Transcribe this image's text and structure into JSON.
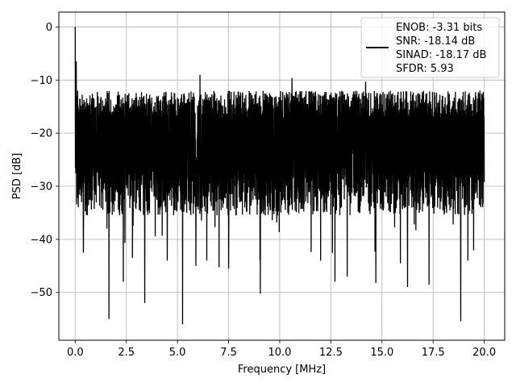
{
  "chart_data": {
    "type": "line",
    "title": "",
    "xlabel": "Frequency [MHz]",
    "ylabel": "PSD [dB]",
    "xlim": [
      -0.8,
      21.0
    ],
    "ylim": [
      -59,
      2.8
    ],
    "x_ticks": [
      0.0,
      2.5,
      5.0,
      7.5,
      10.0,
      12.5,
      15.0,
      17.5,
      20.0
    ],
    "x_tick_labels": [
      "0.0",
      "2.5",
      "5.0",
      "7.5",
      "10.0",
      "12.5",
      "15.0",
      "17.5",
      "20.0"
    ],
    "y_ticks": [
      0,
      -10,
      -20,
      -30,
      -40,
      -50
    ],
    "y_tick_labels": [
      "0",
      "−10",
      "−20",
      "−30",
      "−40",
      "−50"
    ],
    "grid": true,
    "legend_position": "upper-right",
    "legend": {
      "lines": [
        "ENOB: -3.31 bits",
        "SNR: -18.14 dB",
        "SINAD: -18.17 dB",
        "SFDR: 5.93"
      ]
    },
    "series": [
      {
        "color": "#000000",
        "x_range": [
          0.0,
          20.0
        ],
        "noise_floor_db": -22.5,
        "typical_upper_db": -14.5,
        "typical_lower_db": -31.0,
        "peaks": [
          {
            "x": 0.0,
            "y": 0.0
          },
          {
            "x": 0.05,
            "y": -6.5
          },
          {
            "x": 0.12,
            "y": -12.0
          },
          {
            "x": 0.2,
            "y": -16.0
          },
          {
            "x": 6.1,
            "y": -9.0
          },
          {
            "x": 10.6,
            "y": -9.6
          },
          {
            "x": 5.9,
            "y": -10.5
          },
          {
            "x": 14.2,
            "y": -10.3
          }
        ],
        "dips": [
          {
            "x": 1.65,
            "y": -55.0
          },
          {
            "x": 3.4,
            "y": -52.0
          },
          {
            "x": 5.25,
            "y": -56.0
          },
          {
            "x": 9.05,
            "y": -50.2
          },
          {
            "x": 16.25,
            "y": -49.0
          },
          {
            "x": 18.85,
            "y": -55.4
          },
          {
            "x": 2.35,
            "y": -48.0
          },
          {
            "x": 12.7,
            "y": -48.0
          },
          {
            "x": 13.3,
            "y": -47.0
          },
          {
            "x": 14.7,
            "y": -48.2
          },
          {
            "x": 17.3,
            "y": -48.5
          },
          {
            "x": 5.9,
            "y": -45.0
          },
          {
            "x": 7.5,
            "y": -45.5
          },
          {
            "x": 0.4,
            "y": -42.5
          },
          {
            "x": 2.8,
            "y": -43.5
          },
          {
            "x": 4.5,
            "y": -44.0
          },
          {
            "x": 12.0,
            "y": -44.0
          },
          {
            "x": 15.9,
            "y": -44.5
          },
          {
            "x": 19.2,
            "y": -44.0
          }
        ]
      }
    ]
  }
}
